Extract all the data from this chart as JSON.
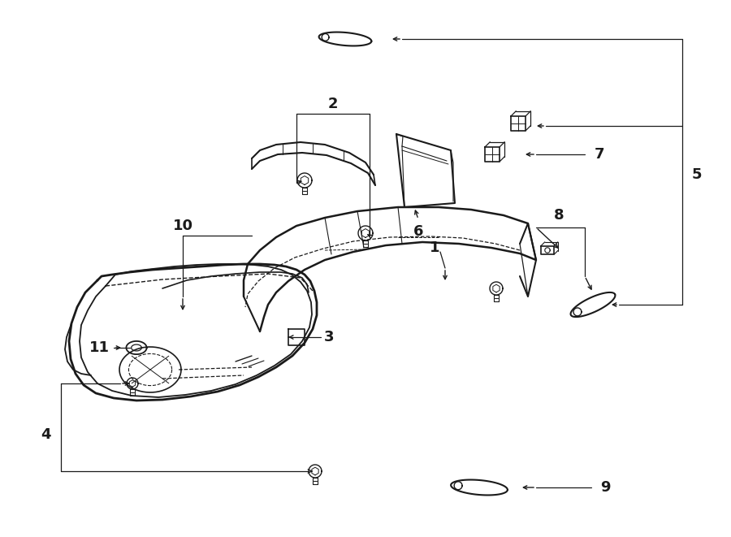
{
  "bg_color": "#ffffff",
  "line_color": "#1a1a1a",
  "fig_width": 9.0,
  "fig_height": 6.61,
  "dpi": 100,
  "label_fs": 13
}
